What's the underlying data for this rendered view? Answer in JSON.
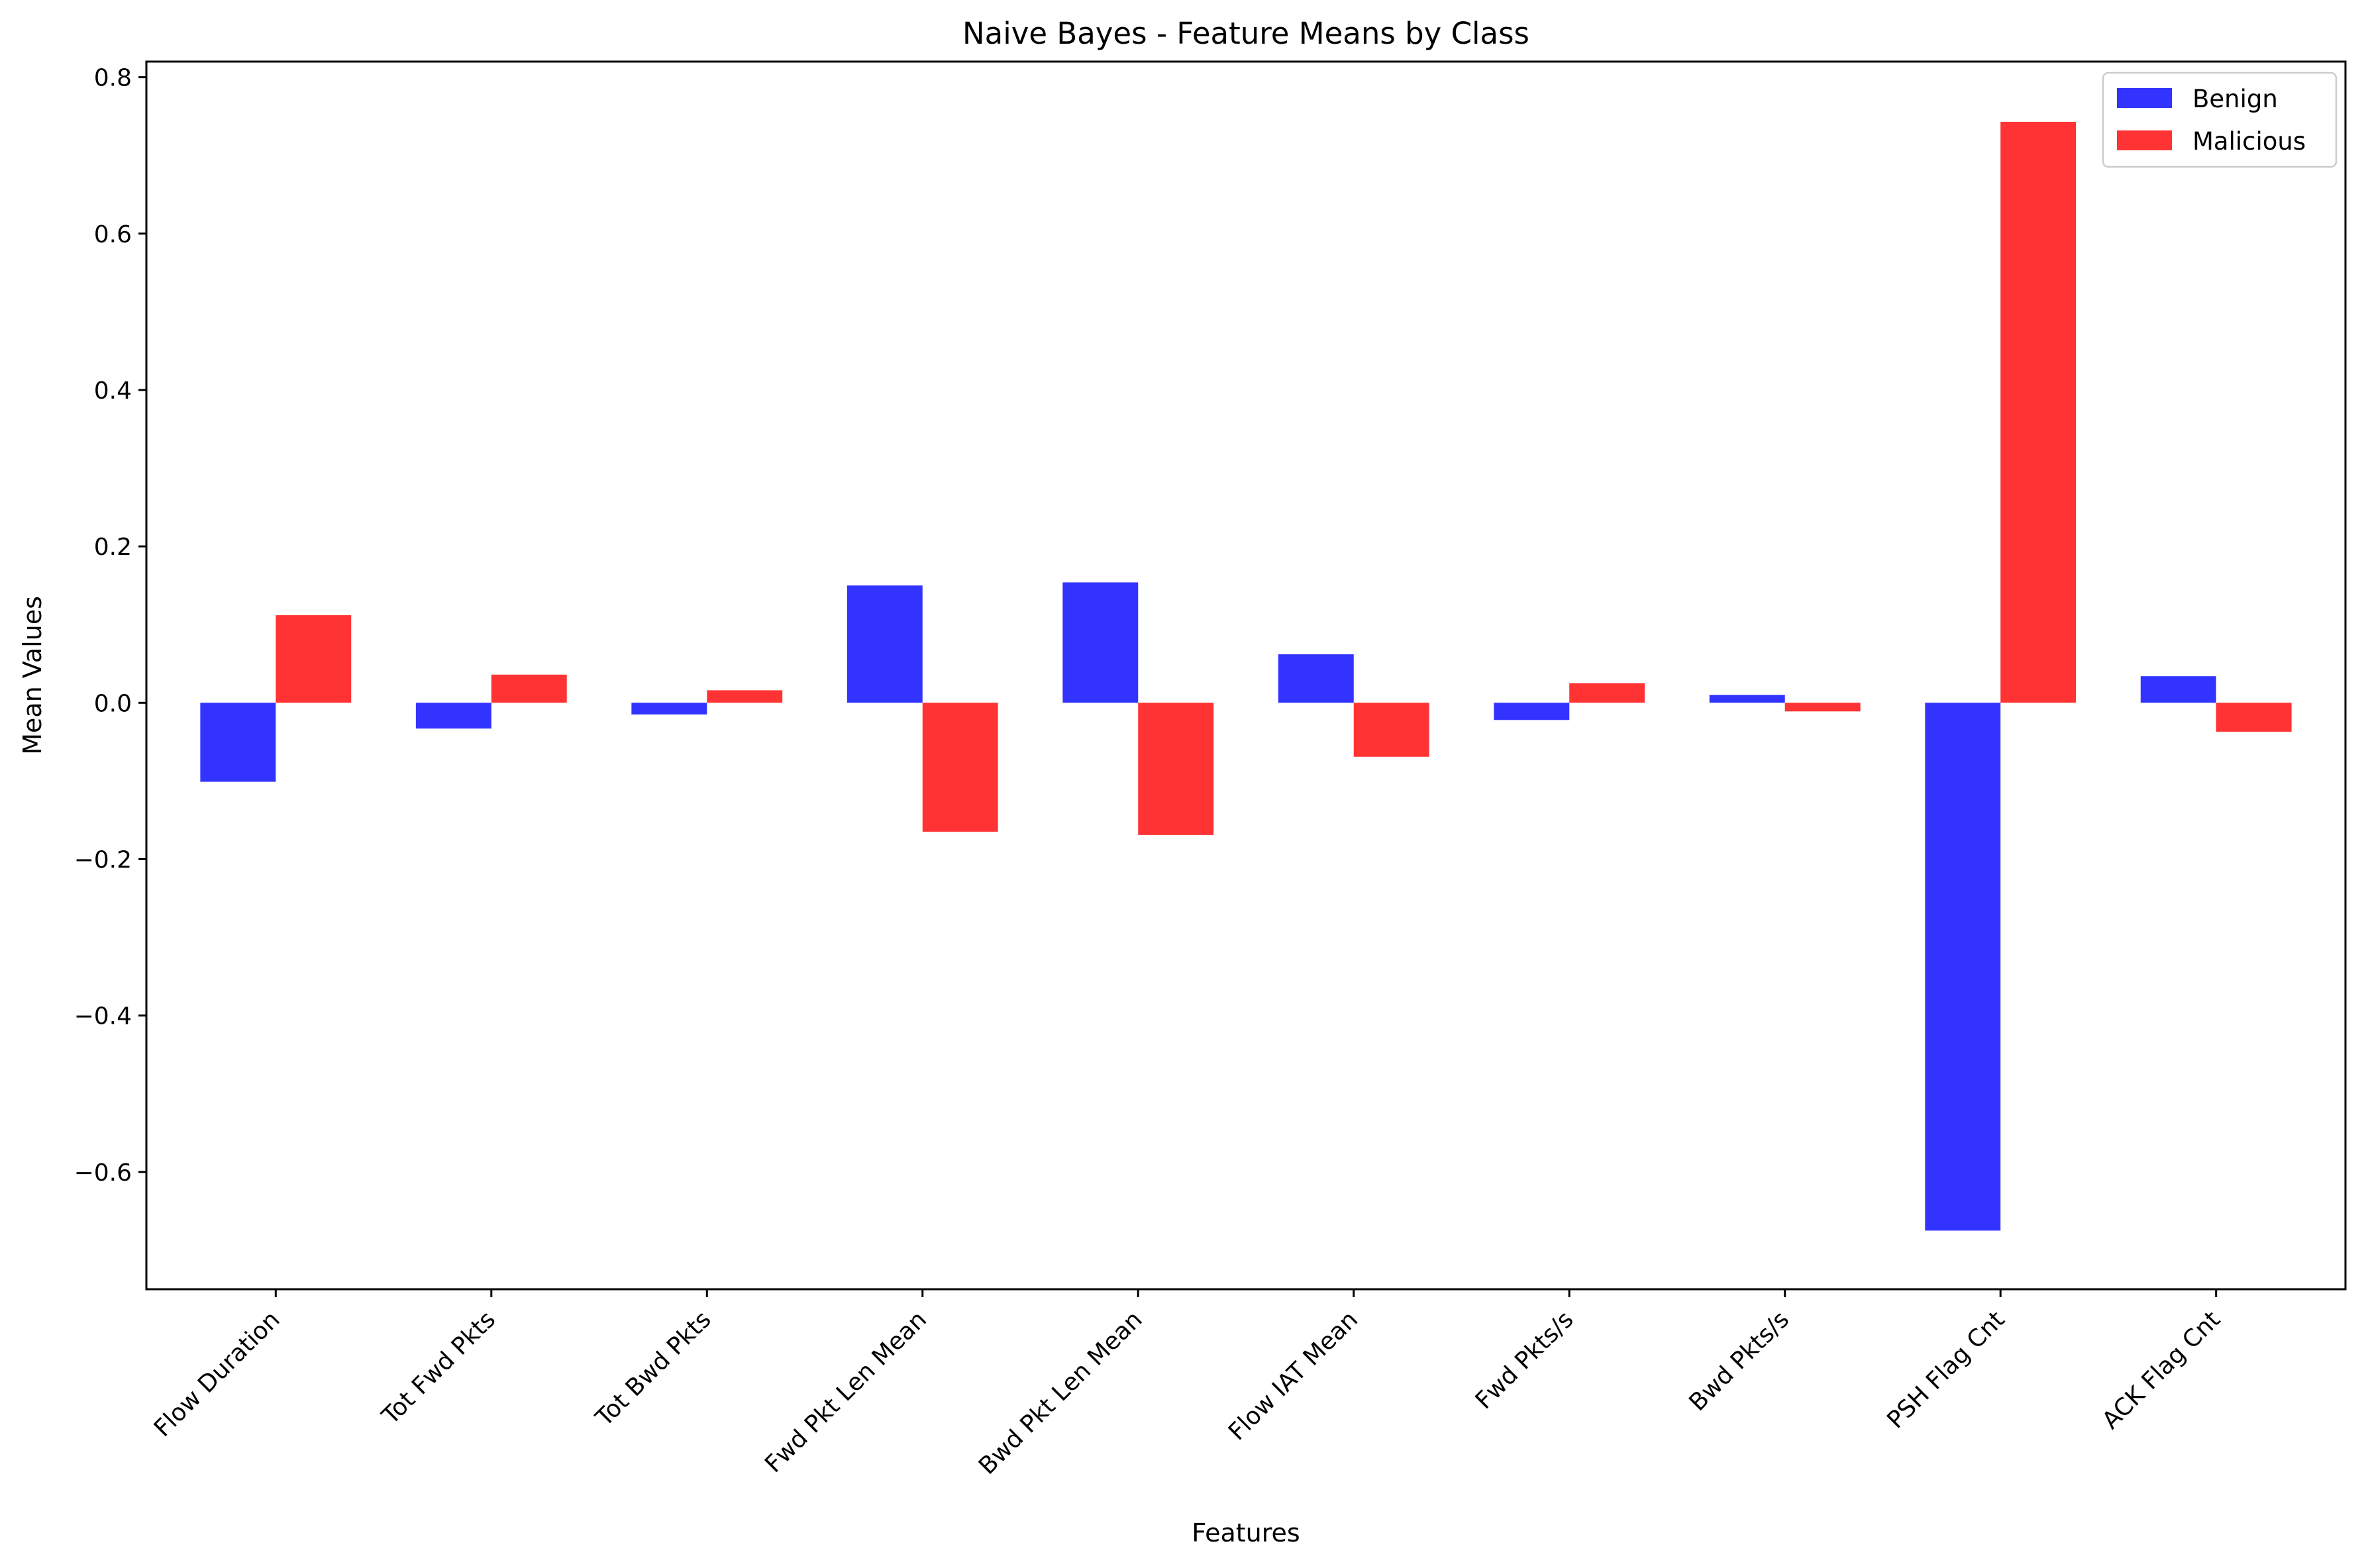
{
  "chart_data": {
    "type": "bar",
    "title": "Naive Bayes - Feature Means by Class",
    "xlabel": "Features",
    "ylabel": "Mean Values",
    "ylim": [
      -0.75,
      0.82
    ],
    "yticks": [
      0.8,
      0.6,
      0.4,
      0.2,
      0.0,
      -0.2,
      -0.4,
      -0.6
    ],
    "ytick_labels": [
      "0.8",
      "0.6",
      "0.4",
      "0.2",
      "0.0",
      "−0.2",
      "−0.4",
      "−0.6"
    ],
    "categories": [
      "Flow Duration",
      "Tot Fwd Pkts",
      "Tot Bwd Pkts",
      "Fwd Pkt Len Mean",
      "Bwd Pkt Len Mean",
      "Flow IAT Mean",
      "Fwd Pkts/s",
      "Bwd Pkts/s",
      "PSH Flag Cnt",
      "ACK Flag Cnt"
    ],
    "series": [
      {
        "name": "Benign",
        "color": "#3333ff",
        "values": [
          -0.101,
          -0.033,
          -0.015,
          0.15,
          0.154,
          0.062,
          -0.022,
          0.01,
          -0.675,
          0.034
        ]
      },
      {
        "name": "Malicious",
        "color": "#ff3333",
        "values": [
          0.112,
          0.036,
          0.016,
          -0.165,
          -0.169,
          -0.069,
          0.025,
          -0.011,
          0.743,
          -0.037
        ]
      }
    ],
    "grid": false,
    "legend_position": "top-right"
  }
}
